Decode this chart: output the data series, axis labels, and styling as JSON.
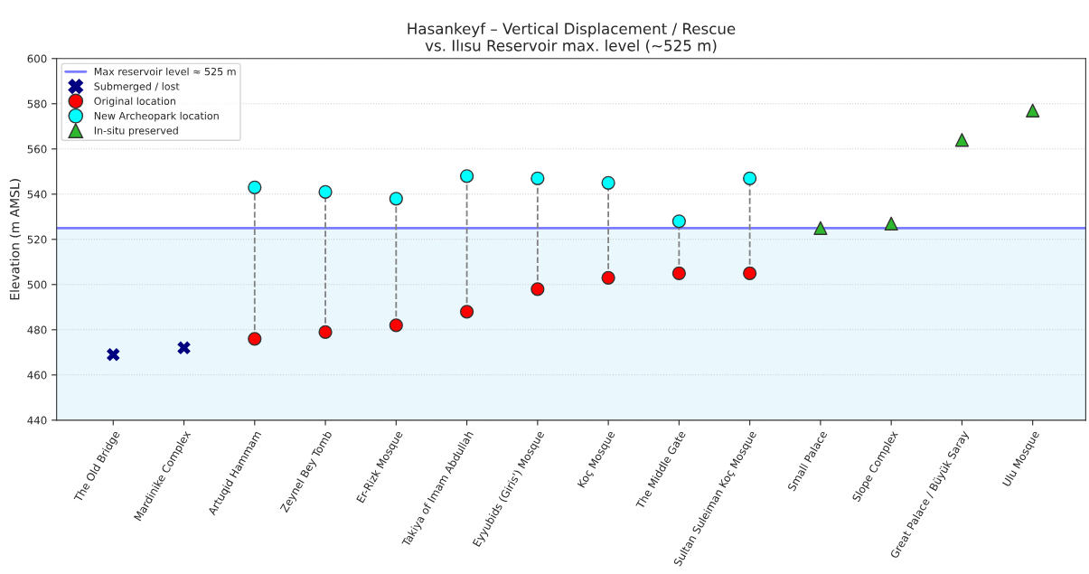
{
  "chart_data": {
    "type": "scatter",
    "title": "Hasankeyf – Vertical Displacement / Rescue\nvs. Ilısu Reservoir max. level (~525 m)",
    "ylabel": "Elevation (m AMSL)",
    "categories": [
      "The Old Bridge",
      "Mardinike Complex",
      "Artuqid Hammam",
      "Zeynel Bey Tomb",
      "Er-Rizk Mosque",
      "Takiya of Imam Abdullah",
      "Eyyubids (Giris') Mosque",
      "Koç Mosque",
      "The Middle Gate",
      "Sultan Suleiman Koç Mosque",
      "Small Palace",
      "Slope Complex",
      "Great Palace / Büyük Saray",
      "Ulu Mosque"
    ],
    "series": [
      {
        "name": "Submerged / lost",
        "color": "#000080",
        "marker": "cross",
        "values": [
          469,
          472,
          null,
          null,
          null,
          null,
          null,
          null,
          null,
          null,
          null,
          null,
          null,
          null
        ]
      },
      {
        "name": "Original location",
        "color": "#ff0000",
        "marker": "circle",
        "values": [
          null,
          null,
          476,
          479,
          482,
          488,
          498,
          503,
          505,
          505,
          null,
          null,
          null,
          null
        ]
      },
      {
        "name": "New Archeopark location",
        "color": "#00ffff",
        "marker": "circle",
        "values": [
          null,
          null,
          543,
          541,
          538,
          548,
          547,
          545,
          528,
          547,
          null,
          null,
          null,
          null
        ]
      },
      {
        "name": "In-situ preserved",
        "color": "#2eb82e",
        "marker": "triangle",
        "values": [
          null,
          null,
          null,
          null,
          null,
          null,
          null,
          null,
          null,
          null,
          525,
          527,
          564,
          577
        ]
      }
    ],
    "ref_lines": [
      {
        "axis": "y",
        "value": 525,
        "label": "Max reservoir level ≈ 525 m",
        "color": "#6666ff",
        "line_style": "solid"
      }
    ],
    "bands": [
      {
        "axis": "y",
        "from": 440,
        "to": 525,
        "color": "#eaf7fd"
      }
    ],
    "ylim": [
      440,
      600
    ],
    "yticks": [
      440,
      460,
      480,
      500,
      520,
      540,
      560,
      580,
      600
    ],
    "grid": "y",
    "legend": "top left"
  }
}
